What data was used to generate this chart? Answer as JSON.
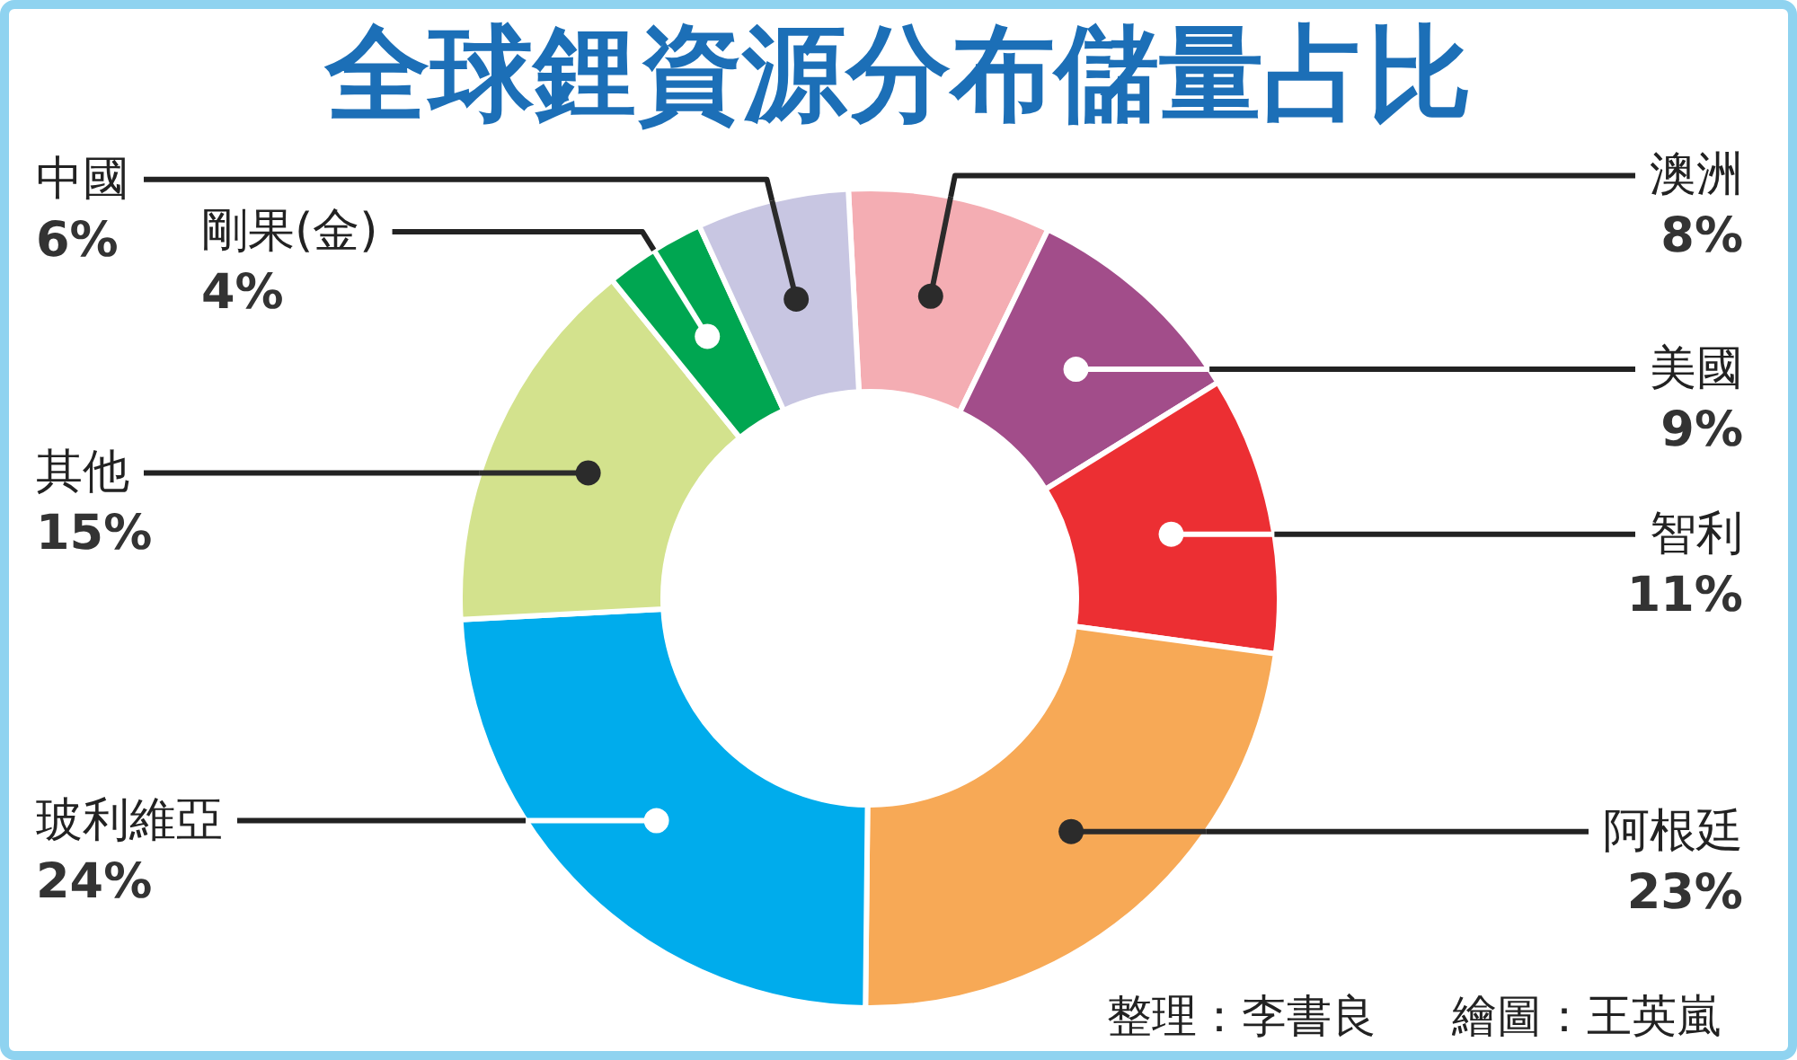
{
  "chart_data": {
    "type": "donut",
    "title": "全球鋰資源分布儲量占比",
    "categories": [
      "澳洲",
      "美國",
      "智利",
      "阿根廷",
      "玻利維亞",
      "其他",
      "剛果(金)",
      "中國"
    ],
    "values": [
      8,
      9,
      11,
      23,
      24,
      15,
      4,
      6
    ],
    "colors": [
      "#f4adb3",
      "#a24d8a",
      "#ec2f33",
      "#f7a956",
      "#00acec",
      "#d3e28d",
      "#00a651",
      "#c8c6e2"
    ],
    "value_labels": [
      "8%",
      "9%",
      "11%",
      "23%",
      "24%",
      "15%",
      "4%",
      "6%"
    ],
    "annotations": [
      "整理：李書良",
      "繪圖：王英嵐"
    ]
  }
}
